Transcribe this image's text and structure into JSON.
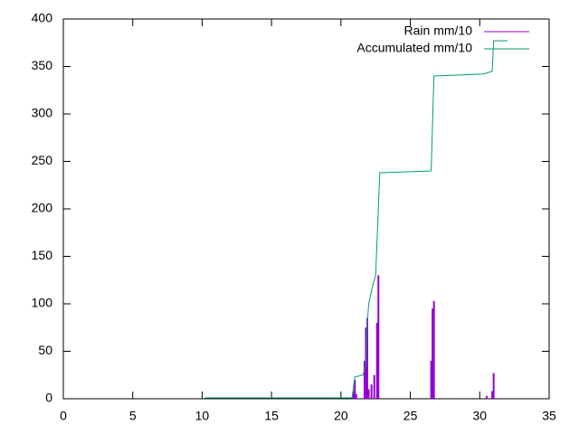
{
  "chart_data": {
    "type": "line",
    "series": [
      {
        "name": "Rain mm/10",
        "color": "#9400d3",
        "style": "impulses",
        "x": [
          20.9,
          21.0,
          21.1,
          21.7,
          21.8,
          21.9,
          22.0,
          22.2,
          22.4,
          22.6,
          22.7,
          26.5,
          26.6,
          26.7,
          30.5,
          30.9,
          31.0
        ],
        "values": [
          8,
          20,
          5,
          40,
          75,
          85,
          10,
          15,
          25,
          80,
          130,
          40,
          95,
          103,
          3,
          8,
          27
        ]
      },
      {
        "name": "Accumulated mm/10",
        "color": "#009e73",
        "style": "lines",
        "x": [
          10.2,
          20.8,
          21.0,
          21.6,
          21.8,
          21.9,
          22.0,
          22.3,
          22.5,
          22.8,
          26.5,
          26.7,
          30.2,
          30.5,
          30.9,
          31.0,
          32.0
        ],
        "values": [
          1,
          1,
          23,
          25,
          38,
          80,
          100,
          120,
          130,
          238,
          240,
          340,
          342,
          343,
          345,
          377,
          377
        ]
      }
    ],
    "xlim": [
      0,
      35
    ],
    "xticks": [
      0,
      5,
      10,
      15,
      20,
      25,
      30,
      35
    ],
    "ylim": [
      0,
      400
    ],
    "yticks": [
      0,
      50,
      100,
      150,
      200,
      250,
      300,
      350,
      400
    ],
    "legend": "top-right"
  }
}
